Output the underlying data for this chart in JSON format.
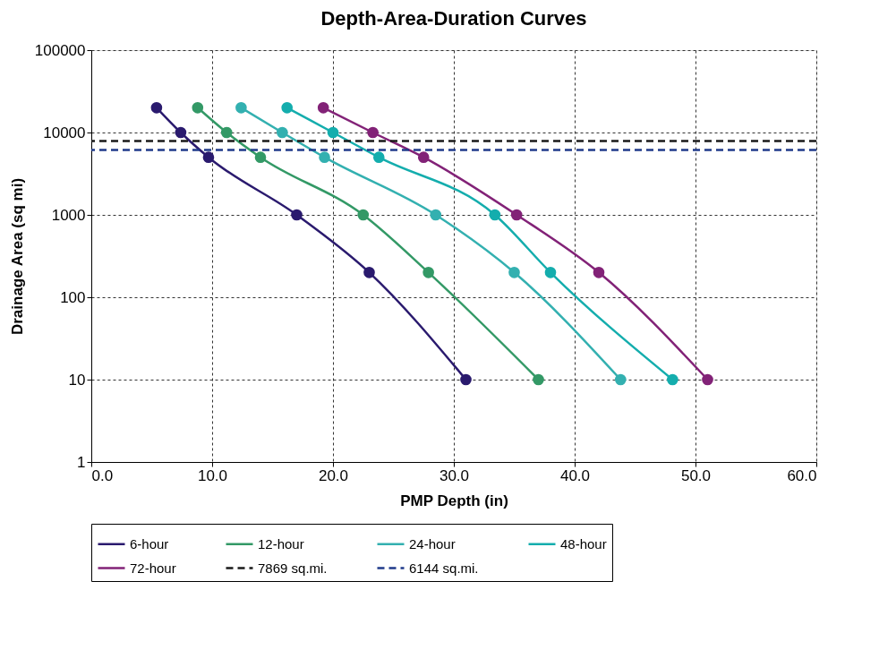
{
  "chart_data": {
    "type": "line",
    "title": "Depth-Area-Duration Curves",
    "xlabel": "PMP Depth (in)",
    "ylabel": "Drainage Area (sq mi)",
    "xlim": [
      0,
      60
    ],
    "xticks": [
      {
        "value": 0,
        "label": "0.0"
      },
      {
        "value": 10,
        "label": "10.0"
      },
      {
        "value": 20,
        "label": "20.0"
      },
      {
        "value": 30,
        "label": "30.0"
      },
      {
        "value": 40,
        "label": "40.0"
      },
      {
        "value": 50,
        "label": "50.0"
      },
      {
        "value": 60,
        "label": "60.0"
      }
    ],
    "ylim": [
      1,
      100000
    ],
    "yticks": [
      1,
      10,
      100,
      1000,
      10000,
      100000
    ],
    "log": "y",
    "grid": true,
    "legend": "bottom",
    "marker": "circle",
    "line_style": "solid",
    "series": [
      {
        "name": "6-hour",
        "color": "#2a1a6e",
        "x": [
          5.4,
          7.4,
          9.7,
          17.0,
          23.0,
          31.0
        ],
        "values": [
          20000,
          10000,
          5000,
          1000,
          200,
          10
        ]
      },
      {
        "name": "12-hour",
        "color": "#339966",
        "x": [
          8.8,
          11.2,
          14.0,
          22.5,
          27.9,
          37.0
        ],
        "values": [
          20000,
          10000,
          5000,
          1000,
          200,
          10
        ]
      },
      {
        "name": "24-hour",
        "color": "#33b0b0",
        "x": [
          12.4,
          15.8,
          19.3,
          28.5,
          35.0,
          43.8
        ],
        "values": [
          20000,
          10000,
          5000,
          1000,
          200,
          10
        ]
      },
      {
        "name": "48-hour",
        "color": "#14adad",
        "x": [
          16.2,
          20.0,
          23.8,
          33.4,
          38.0,
          48.1
        ],
        "values": [
          20000,
          10000,
          5000,
          1000,
          200,
          10
        ]
      },
      {
        "name": "72-hour",
        "color": "#822277",
        "x": [
          19.2,
          23.3,
          27.5,
          35.2,
          42.0,
          51.0
        ],
        "values": [
          20000,
          10000,
          5000,
          1000,
          200,
          10
        ]
      }
    ],
    "ref_lines": [
      {
        "axis": "y",
        "value": 7869,
        "label": "7869 sq.mi.",
        "color": "#1a1a1a",
        "line_style": "dashed"
      },
      {
        "axis": "y",
        "value": 6144,
        "label": "6144 sq.mi.",
        "color": "#1f3a8a",
        "line_style": "dashed"
      }
    ]
  }
}
